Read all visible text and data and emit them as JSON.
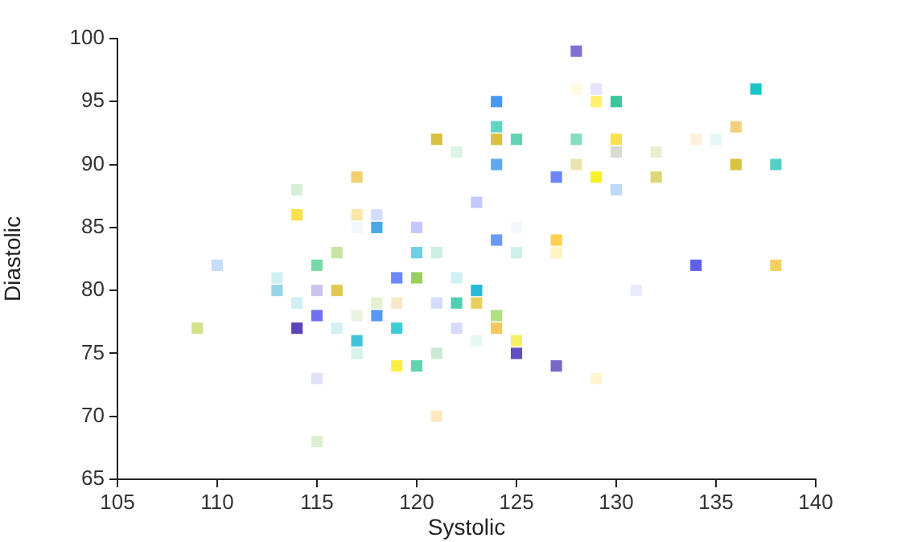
{
  "chart_data": {
    "type": "scatter",
    "xlabel": "Systolic",
    "ylabel": "Diastolic",
    "xlim": [
      105,
      140
    ],
    "xticks": [
      105,
      110,
      115,
      120,
      125,
      130,
      135,
      140
    ],
    "ylim": [
      65,
      100
    ],
    "yticks": [
      65,
      70,
      75,
      80,
      85,
      90,
      95,
      100
    ],
    "grid": false,
    "legend": false,
    "marker": "square",
    "x": [
      109,
      110,
      113,
      113,
      114,
      114,
      114,
      114,
      115,
      115,
      115,
      115,
      115,
      116,
      116,
      116,
      117,
      117,
      117,
      117,
      117,
      117,
      118,
      118,
      118,
      118,
      119,
      119,
      119,
      119,
      120,
      120,
      120,
      120,
      121,
      121,
      121,
      121,
      121,
      122,
      122,
      122,
      122,
      123,
      123,
      123,
      123,
      124,
      124,
      124,
      124,
      124,
      124,
      124,
      125,
      125,
      125,
      125,
      125,
      127,
      127,
      127,
      127,
      128,
      128,
      128,
      128,
      129,
      129,
      129,
      129,
      130,
      130,
      130,
      130,
      131,
      132,
      132,
      134,
      134,
      135,
      136,
      136,
      137,
      138,
      138
    ],
    "values": [
      77,
      82,
      81,
      80,
      88,
      86,
      79,
      77,
      82,
      80,
      78,
      73,
      68,
      83,
      80,
      77,
      89,
      86,
      85,
      78,
      76,
      75,
      86,
      85,
      79,
      78,
      81,
      79,
      77,
      74,
      85,
      83,
      81,
      74,
      92,
      83,
      79,
      75,
      70,
      91,
      81,
      79,
      77,
      87,
      80,
      79,
      76,
      95,
      93,
      92,
      90,
      84,
      78,
      77,
      92,
      85,
      83,
      76,
      75,
      89,
      84,
      83,
      74,
      99,
      96,
      92,
      90,
      96,
      95,
      89,
      73,
      95,
      92,
      91,
      88,
      80,
      91,
      89,
      92,
      82,
      92,
      93,
      90,
      96,
      90,
      82
    ],
    "colors": [
      "#d4e08a",
      "#c6dcfa",
      "#d0f0f0",
      "#98d4e4",
      "#d4f0d8",
      "#f8e050",
      "#d0f0f4",
      "#5a44b8",
      "#78d8a8",
      "#c8c4ec",
      "#7070f0",
      "#e0e0fa",
      "#dcf0d0",
      "#c8e4a4",
      "#e0c850",
      "#d0f0f4",
      "#f0d070",
      "#fae8a8",
      "#f0f8fc",
      "#e8f4e0",
      "#40c4d8",
      "#d4f4e8",
      "#d4dcfc",
      "#48a8e8",
      "#e4f0d0",
      "#5898f8",
      "#6c88fc",
      "#f8e8c8",
      "#40ccd4",
      "#f8f040",
      "#c4c8fc",
      "#6cd0e4",
      "#98d060",
      "#60d4b0",
      "#d8c040",
      "#cceee4",
      "#d4dcfc",
      "#cce8d4",
      "#fee8c0",
      "#dcf4e8",
      "#d0f0f4",
      "#50d0b0",
      "#d8dcfa",
      "#c4c8fc",
      "#28b8d8",
      "#e8d060",
      "#e6f8f2",
      "#4898f8",
      "#60d4c4",
      "#d8c040",
      "#60a8f0",
      "#6c98fc",
      "#b0e080",
      "#f0c860",
      "#60d4b0",
      "#f4f8fc",
      "#ccf0ec",
      "#f8f060",
      "#6050c0",
      "#6c84f8",
      "#ffd050",
      "#fef2c0",
      "#7868c8",
      "#8070d0",
      "#fffae0",
      "#88dcc4",
      "#ece4b0",
      "#e4e4fa",
      "#fef070",
      "#f8f028",
      "#fef6d0",
      "#38c89c",
      "#f8e050",
      "#d8dcd0",
      "#bcd8fa",
      "#e8ecfc",
      "#e8f0d0",
      "#e0d478",
      "#fcf0dc",
      "#6060f0",
      "#e4f8f8",
      "#f0d07c",
      "#d8c440",
      "#18c4c8",
      "#50d0c4",
      "#f4d060"
    ]
  }
}
